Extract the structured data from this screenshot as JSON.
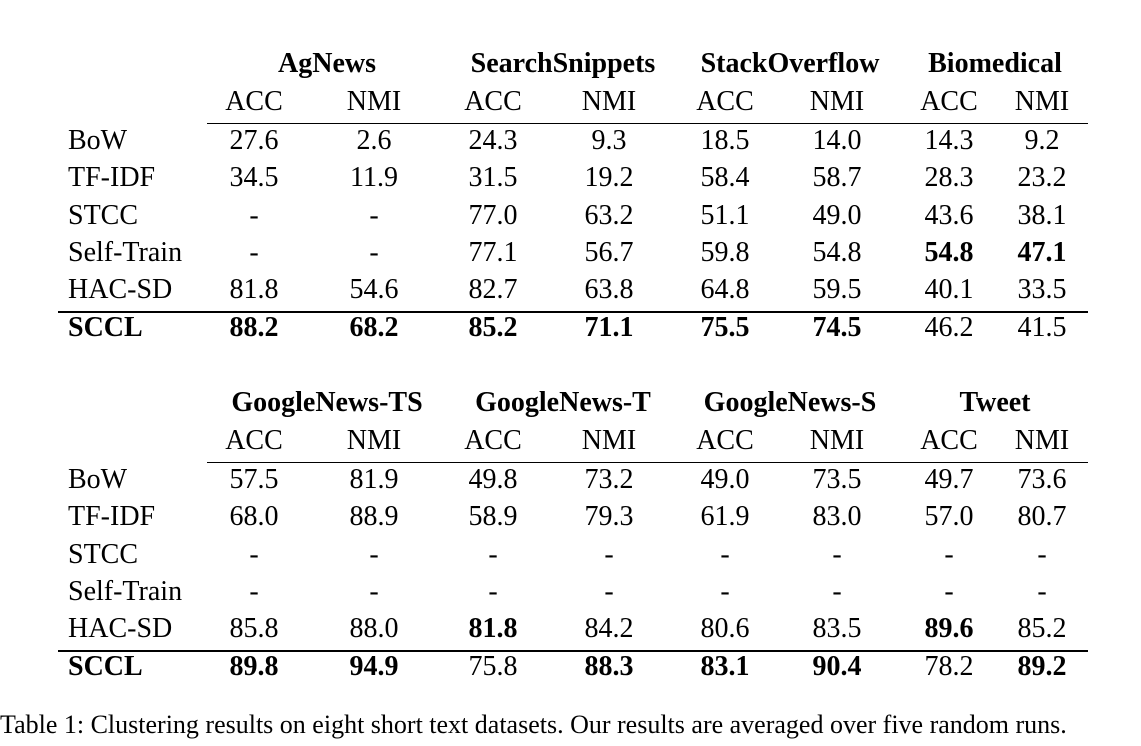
{
  "tables": [
    {
      "datasets": [
        "AgNews",
        "SearchSnippets",
        "StackOverflow",
        "Biomedical"
      ],
      "metrics": [
        "ACC",
        "NMI",
        "ACC",
        "NMI",
        "ACC",
        "NMI",
        "ACC",
        "NMI"
      ],
      "rows": [
        {
          "label": "BoW",
          "values": [
            "27.6",
            "2.6",
            "24.3",
            "9.3",
            "18.5",
            "14.0",
            "14.3",
            "9.2"
          ],
          "bold": [
            false,
            false,
            false,
            false,
            false,
            false,
            false,
            false
          ]
        },
        {
          "label": "TF-IDF",
          "values": [
            "34.5",
            "11.9",
            "31.5",
            "19.2",
            "58.4",
            "58.7",
            "28.3",
            "23.2"
          ],
          "bold": [
            false,
            false,
            false,
            false,
            false,
            false,
            false,
            false
          ]
        },
        {
          "label": "STCC",
          "values": [
            "-",
            "-",
            "77.0",
            "63.2",
            "51.1",
            "49.0",
            "43.6",
            "38.1"
          ],
          "bold": [
            false,
            false,
            false,
            false,
            false,
            false,
            false,
            false
          ]
        },
        {
          "label": "Self-Train",
          "values": [
            "-",
            "-",
            "77.1",
            "56.7",
            "59.8",
            "54.8",
            "54.8",
            "47.1"
          ],
          "bold": [
            false,
            false,
            false,
            false,
            false,
            false,
            true,
            true
          ]
        },
        {
          "label": "HAC-SD",
          "values": [
            "81.8",
            "54.6",
            "82.7",
            "63.8",
            "64.8",
            "59.5",
            "40.1",
            "33.5"
          ],
          "bold": [
            false,
            false,
            false,
            false,
            false,
            false,
            false,
            false
          ]
        },
        {
          "label": "SCCL",
          "label_bold": true,
          "values": [
            "88.2",
            "68.2",
            "85.2",
            "71.1",
            "75.5",
            "74.5",
            "46.2",
            "41.5"
          ],
          "bold": [
            true,
            true,
            true,
            true,
            true,
            true,
            false,
            false
          ]
        }
      ]
    },
    {
      "datasets": [
        "GoogleNews-TS",
        "GoogleNews-T",
        "GoogleNews-S",
        "Tweet"
      ],
      "metrics": [
        "ACC",
        "NMI",
        "ACC",
        "NMI",
        "ACC",
        "NMI",
        "ACC",
        "NMI"
      ],
      "rows": [
        {
          "label": "BoW",
          "values": [
            "57.5",
            "81.9",
            "49.8",
            "73.2",
            "49.0",
            "73.5",
            "49.7",
            "73.6"
          ],
          "bold": [
            false,
            false,
            false,
            false,
            false,
            false,
            false,
            false
          ]
        },
        {
          "label": "TF-IDF",
          "values": [
            "68.0",
            "88.9",
            "58.9",
            "79.3",
            "61.9",
            "83.0",
            "57.0",
            "80.7"
          ],
          "bold": [
            false,
            false,
            false,
            false,
            false,
            false,
            false,
            false
          ]
        },
        {
          "label": "STCC",
          "values": [
            "-",
            "-",
            "-",
            "-",
            "-",
            "-",
            "-",
            "-"
          ],
          "bold": [
            false,
            false,
            false,
            false,
            false,
            false,
            false,
            false
          ]
        },
        {
          "label": "Self-Train",
          "values": [
            "-",
            "-",
            "-",
            "-",
            "-",
            "-",
            "-",
            "-"
          ],
          "bold": [
            false,
            false,
            false,
            false,
            false,
            false,
            false,
            false
          ]
        },
        {
          "label": "HAC-SD",
          "values": [
            "85.8",
            "88.0",
            "81.8",
            "84.2",
            "80.6",
            "83.5",
            "89.6",
            "85.2"
          ],
          "bold": [
            false,
            false,
            true,
            false,
            false,
            false,
            true,
            false
          ]
        },
        {
          "label": "SCCL",
          "label_bold": true,
          "values": [
            "89.8",
            "94.9",
            "75.8",
            "88.3",
            "83.1",
            "90.4",
            "78.2",
            "89.2"
          ],
          "bold": [
            true,
            true,
            false,
            true,
            true,
            true,
            false,
            true
          ]
        }
      ]
    }
  ],
  "caption": "Table 1: Clustering results on eight short text datasets. Our results are averaged over five random runs."
}
